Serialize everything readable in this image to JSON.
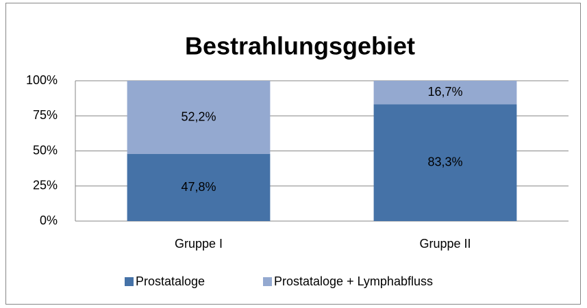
{
  "chart_data": {
    "type": "stacked_bar",
    "title": "Bestrahlungsgebiet",
    "categories": [
      "Gruppe I",
      "Gruppe II"
    ],
    "series": [
      {
        "name": "Prostataloge",
        "color": "#4572a7",
        "values": [
          47.8,
          83.3
        ],
        "value_labels": [
          "47,8%",
          "83,3%"
        ]
      },
      {
        "name": "Prostataloge + Lymphabfluss",
        "color": "#94a9d0",
        "values": [
          52.2,
          16.7
        ],
        "value_labels": [
          "52,2%",
          "16,7%"
        ]
      }
    ],
    "ylim": [
      0,
      100
    ],
    "yticks": [
      {
        "value": 0,
        "label": "0%"
      },
      {
        "value": 25,
        "label": "25%"
      },
      {
        "value": 50,
        "label": "50%"
      },
      {
        "value": 75,
        "label": "75%"
      },
      {
        "value": 100,
        "label": "100%"
      }
    ],
    "grid": true,
    "legend": "bottom"
  }
}
